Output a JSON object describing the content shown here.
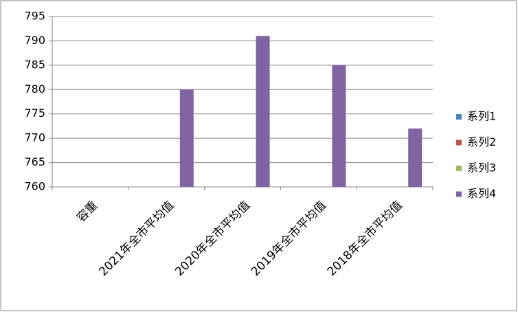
{
  "chart_data": {
    "type": "bar",
    "categories": [
      "容重",
      "2021年全市平均值",
      "2020年全市平均值",
      "2019年全市平均值",
      "2018年全市平均值"
    ],
    "series": [
      {
        "name": "系列1",
        "color": "#4f81bd",
        "values": [
          null,
          null,
          null,
          null,
          null
        ]
      },
      {
        "name": "系列2",
        "color": "#c0504d",
        "values": [
          null,
          null,
          null,
          null,
          null
        ]
      },
      {
        "name": "系列3",
        "color": "#9bbb59",
        "values": [
          null,
          null,
          null,
          null,
          null
        ]
      },
      {
        "name": "系列4",
        "color": "#8064a2",
        "values": [
          null,
          780,
          791,
          785,
          772
        ]
      }
    ],
    "ylim": [
      760,
      795
    ],
    "yticks": [
      760,
      765,
      770,
      775,
      780,
      785,
      790,
      795
    ],
    "grid": true,
    "legend": "right"
  }
}
